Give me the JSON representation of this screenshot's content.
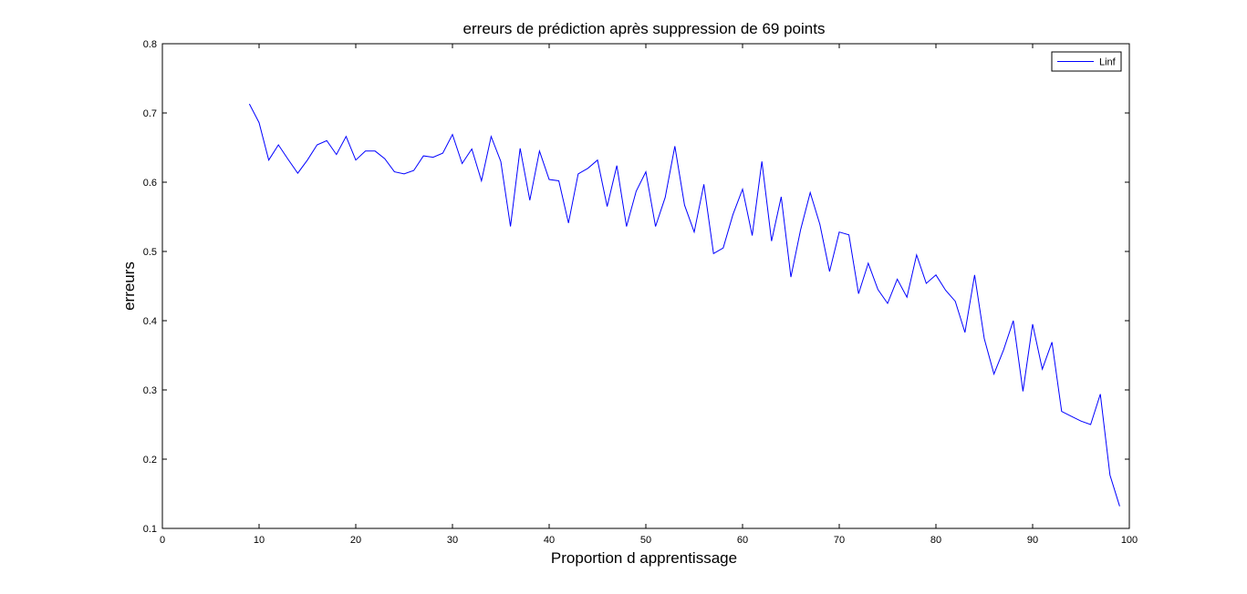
{
  "chart_data": {
    "type": "line",
    "title": "erreurs de prédiction après suppression de 69 points",
    "xlabel": "Proportion d apprentissage",
    "ylabel": "erreurs",
    "xlim": [
      0,
      100
    ],
    "ylim": [
      0.1,
      0.8
    ],
    "xticks": [
      0,
      10,
      20,
      30,
      40,
      50,
      60,
      70,
      80,
      90,
      100
    ],
    "yticks": [
      0.1,
      0.2,
      0.3,
      0.4,
      0.5,
      0.6,
      0.7,
      0.8
    ],
    "grid": false,
    "legend_position": "top-right",
    "series": [
      {
        "name": "Linf",
        "color": "#0000ff",
        "x": [
          9,
          10,
          11,
          12,
          13,
          14,
          15,
          16,
          17,
          18,
          19,
          20,
          21,
          22,
          23,
          24,
          25,
          26,
          27,
          28,
          29,
          30,
          31,
          32,
          33,
          34,
          35,
          36,
          37,
          38,
          39,
          40,
          41,
          42,
          43,
          44,
          45,
          46,
          47,
          48,
          49,
          50,
          51,
          52,
          53,
          54,
          55,
          56,
          57,
          58,
          59,
          60,
          61,
          62,
          63,
          64,
          65,
          66,
          67,
          68,
          69,
          70,
          71,
          72,
          73,
          74,
          75,
          76,
          77,
          78,
          79,
          80,
          81,
          82,
          83,
          84,
          85,
          86,
          87,
          88,
          89,
          90,
          91,
          92,
          93,
          94,
          95,
          96,
          97,
          98,
          99
        ],
        "y": [
          0.713,
          0.686,
          0.632,
          0.654,
          0.633,
          0.613,
          0.632,
          0.654,
          0.66,
          0.64,
          0.666,
          0.632,
          0.645,
          0.645,
          0.634,
          0.615,
          0.612,
          0.617,
          0.638,
          0.636,
          0.642,
          0.669,
          0.627,
          0.648,
          0.602,
          0.666,
          0.63,
          0.536,
          0.649,
          0.574,
          0.645,
          0.604,
          0.602,
          0.541,
          0.612,
          0.62,
          0.632,
          0.565,
          0.624,
          0.536,
          0.587,
          0.615,
          0.536,
          0.578,
          0.652,
          0.567,
          0.528,
          0.597,
          0.497,
          0.505,
          0.553,
          0.59,
          0.523,
          0.63,
          0.515,
          0.579,
          0.463,
          0.531,
          0.585,
          0.539,
          0.471,
          0.528,
          0.524,
          0.439,
          0.483,
          0.445,
          0.425,
          0.46,
          0.434,
          0.495,
          0.454,
          0.466,
          0.444,
          0.428,
          0.383,
          0.466,
          0.374,
          0.323,
          0.358,
          0.4,
          0.298,
          0.395,
          0.33,
          0.369,
          0.269,
          0.262,
          0.255,
          0.25,
          0.294,
          0.177,
          0.132
        ]
      }
    ]
  }
}
